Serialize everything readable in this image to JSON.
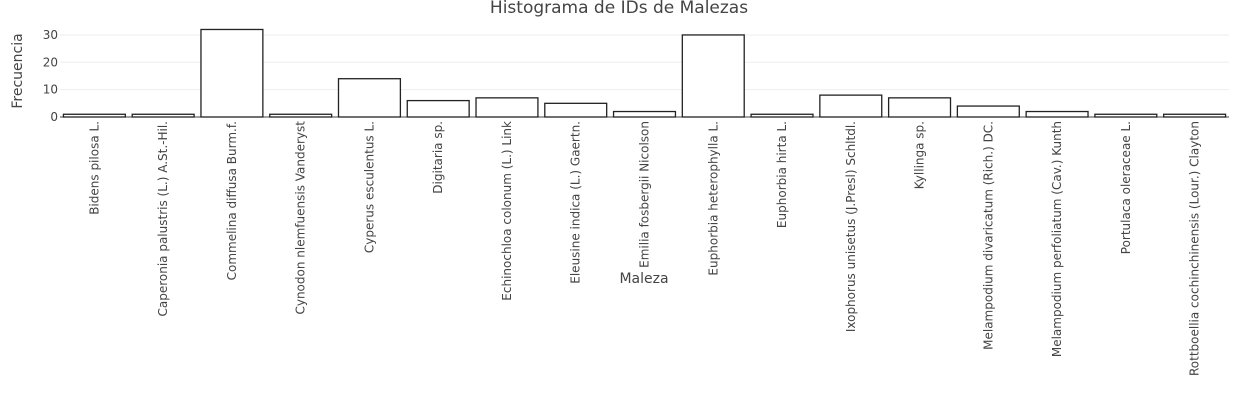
{
  "chart_data": {
    "type": "bar",
    "title": "Histograma de IDs de Malezas",
    "xlabel": "Maleza",
    "ylabel": "Frecuencia",
    "ylim": [
      0,
      33
    ],
    "yticks": [
      0,
      10,
      20,
      30
    ],
    "grid": true,
    "legend": "none",
    "colors": {
      "bar_fill": "#ffffff",
      "bar_stroke": "#222222",
      "text": "#444444",
      "grid": "#eeeeee"
    },
    "categories": [
      "Bidens pilosa L.",
      "Caperonia palustris (L.) A.St.-Hil.",
      "Commelina diffusa Burm.f.",
      "Cynodon nlemfuensis Vanderyst",
      "Cyperus esculentus L.",
      "Digitaria sp.",
      "Echinochloa colonum (L.) Link",
      "Eleusine indica (L.) Gaertn.",
      "Emilia fosbergii Nicolson",
      "Euphorbia heterophylla L.",
      "Euphorbia hirta L.",
      "Ixophorus unisetus (J.Presl) Schltdl.",
      "Kyllinga sp.",
      "Melampodium divaricatum (Rich.) DC.",
      "Melampodium perfoliatum (Cav.) Kunth",
      "Portulaca oleraceae L.",
      "Rottboellia cochinchinensis (Lour.) Clayton"
    ],
    "values": [
      1,
      1,
      32,
      1,
      14,
      6,
      7,
      5,
      2,
      30,
      1,
      8,
      7,
      4,
      2,
      1,
      1
    ]
  }
}
